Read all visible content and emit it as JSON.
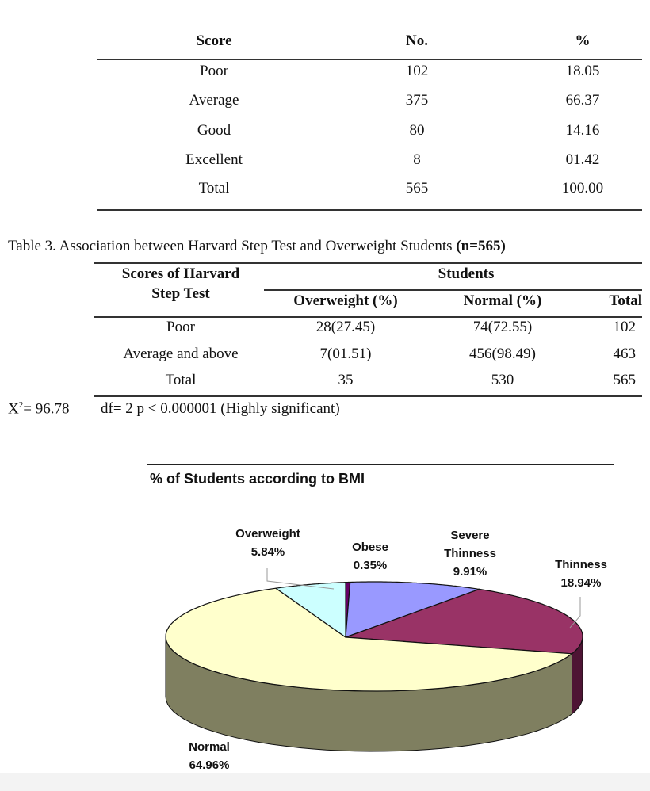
{
  "table2": {
    "headers": [
      "Score",
      "No.",
      "%"
    ],
    "rows": [
      [
        "Poor",
        "102",
        "18.05"
      ],
      [
        "Average",
        "375",
        "66.37"
      ],
      [
        "Good",
        "80",
        "14.16"
      ],
      [
        "Excellent",
        "8",
        "01.42"
      ],
      [
        "Total",
        "565",
        "100.00"
      ]
    ]
  },
  "table3": {
    "caption": "Table 3. Association between Harvard Step Test and Overweight Students ",
    "caption_bold": "(n=565)",
    "header_score_line1": "Scores of Harvard",
    "header_score_line2": "Step Test",
    "header_students": "Students",
    "subheaders": [
      "Overweight (%)",
      "Normal (%)",
      "Total"
    ],
    "rows": [
      [
        "Poor",
        "28(27.45)",
        "74(72.55)",
        "102"
      ],
      [
        "Average and above",
        "7(01.51)",
        "456(98.49)",
        "463"
      ],
      [
        "Total",
        "35",
        "530",
        "565"
      ]
    ],
    "chi_label": "X",
    "chi_sup": "2",
    "chi_value": "= 96.78",
    "stats": "df= 2 p < 0.000001 (Highly significant)"
  },
  "chart_data": {
    "type": "pie",
    "title": "% of Students according to BMI",
    "slices": [
      {
        "name": "Obese",
        "label_lines": [
          "Obese",
          "0.35%"
        ],
        "value": 0.35,
        "color": "#660066",
        "side": "#3a003a"
      },
      {
        "name": "Severe Thinness",
        "label_lines": [
          "Severe",
          "Thinness",
          "9.91%"
        ],
        "value": 9.91,
        "color": "#9999ff",
        "side": "#5c5c99"
      },
      {
        "name": "Thinness",
        "label_lines": [
          "Thinness",
          "18.94%"
        ],
        "value": 18.94,
        "color": "#993366",
        "side": "#4e1434"
      },
      {
        "name": "Normal",
        "label_lines": [
          "Normal",
          "64.96%"
        ],
        "value": 64.96,
        "color": "#ffffcc",
        "side": "#7f7f60"
      },
      {
        "name": "Overweight",
        "label_lines": [
          "Overweight",
          "5.84%"
        ],
        "value": 5.84,
        "color": "#ccffff",
        "side": "#7a9999"
      }
    ]
  }
}
